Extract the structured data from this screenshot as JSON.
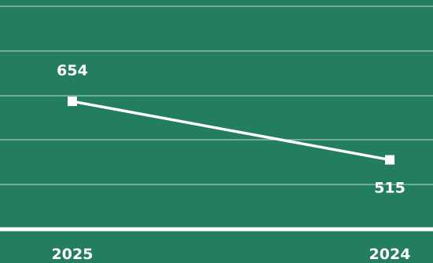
{
  "chart_data": {
    "type": "line",
    "title": "",
    "xlabel": "",
    "ylabel": "",
    "categories": [
      "2025",
      "2024"
    ],
    "series": [
      {
        "values": [
          654,
          515
        ]
      }
    ],
    "ylim": [
      350,
      880
    ],
    "grid": true,
    "legend": "none",
    "colors": {
      "background": "#237e5e",
      "line": "#ffffff",
      "grid": "#d8ebe2"
    }
  }
}
